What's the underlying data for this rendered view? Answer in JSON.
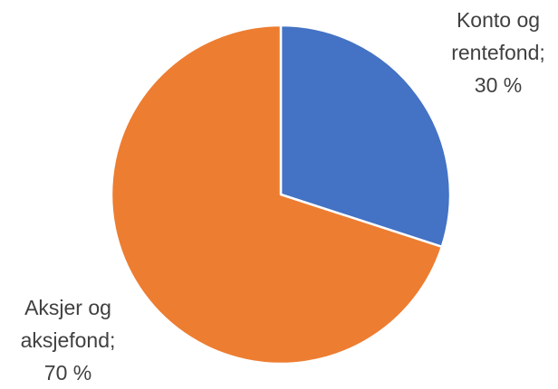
{
  "chart_data": {
    "type": "pie",
    "categories": [
      "Konto og rentefond;",
      "Aksjer og aksjefond;"
    ],
    "values": [
      30,
      70
    ],
    "value_labels": [
      "30 %",
      "70 %"
    ],
    "colors": [
      "#4472c4",
      "#ed7d31"
    ]
  }
}
